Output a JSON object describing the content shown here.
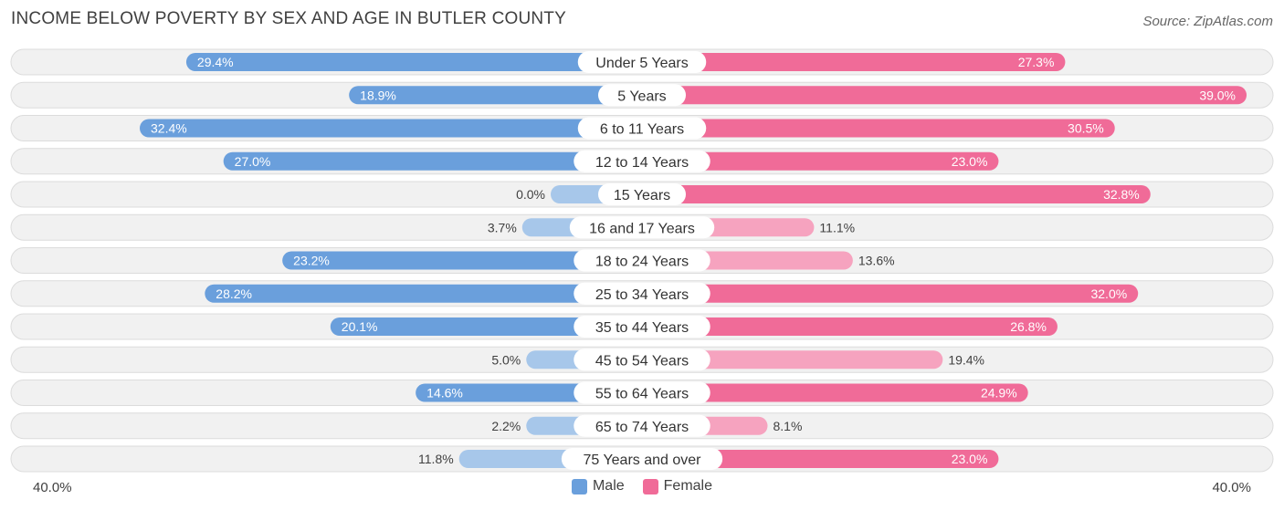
{
  "title": "INCOME BELOW POVERTY BY SEX AND AGE IN BUTLER COUNTY",
  "source": "Source: ZipAtlas.com",
  "axis": {
    "left_label": "40.0%",
    "right_label": "40.0%"
  },
  "legend": {
    "male": "Male",
    "female": "Female"
  },
  "colors": {
    "male_strong": "#6a9fdc",
    "male_light": "#a7c7ea",
    "female_strong": "#f06b98",
    "female_light": "#f6a3bf",
    "track": "#f1f1f1",
    "track_border": "#dcdcdc"
  },
  "chart_data": {
    "type": "bar",
    "orientation": "horizontal-diverging",
    "title": "INCOME BELOW POVERTY BY SEX AND AGE IN BUTLER COUNTY",
    "xlim": [
      -40,
      40
    ],
    "categories": [
      "Under 5 Years",
      "5 Years",
      "6 to 11 Years",
      "12 to 14 Years",
      "15 Years",
      "16 and 17 Years",
      "18 to 24 Years",
      "25 to 34 Years",
      "35 to 44 Years",
      "45 to 54 Years",
      "55 to 64 Years",
      "65 to 74 Years",
      "75 Years and over"
    ],
    "series": [
      {
        "name": "Male",
        "values": [
          29.4,
          18.9,
          32.4,
          27.0,
          0.0,
          3.7,
          23.2,
          28.2,
          20.1,
          5.0,
          14.6,
          2.2,
          11.8
        ],
        "labels": [
          "29.4%",
          "18.9%",
          "32.4%",
          "27.0%",
          "0.0%",
          "3.7%",
          "23.2%",
          "28.2%",
          "20.1%",
          "5.0%",
          "14.6%",
          "2.2%",
          "11.8%"
        ]
      },
      {
        "name": "Female",
        "values": [
          27.3,
          39.0,
          30.5,
          23.0,
          32.8,
          11.1,
          13.6,
          32.0,
          26.8,
          19.4,
          24.9,
          8.1,
          23.0
        ],
        "labels": [
          "27.3%",
          "39.0%",
          "30.5%",
          "23.0%",
          "32.8%",
          "11.1%",
          "13.6%",
          "32.0%",
          "26.8%",
          "19.4%",
          "24.9%",
          "8.1%",
          "23.0%"
        ]
      }
    ]
  }
}
